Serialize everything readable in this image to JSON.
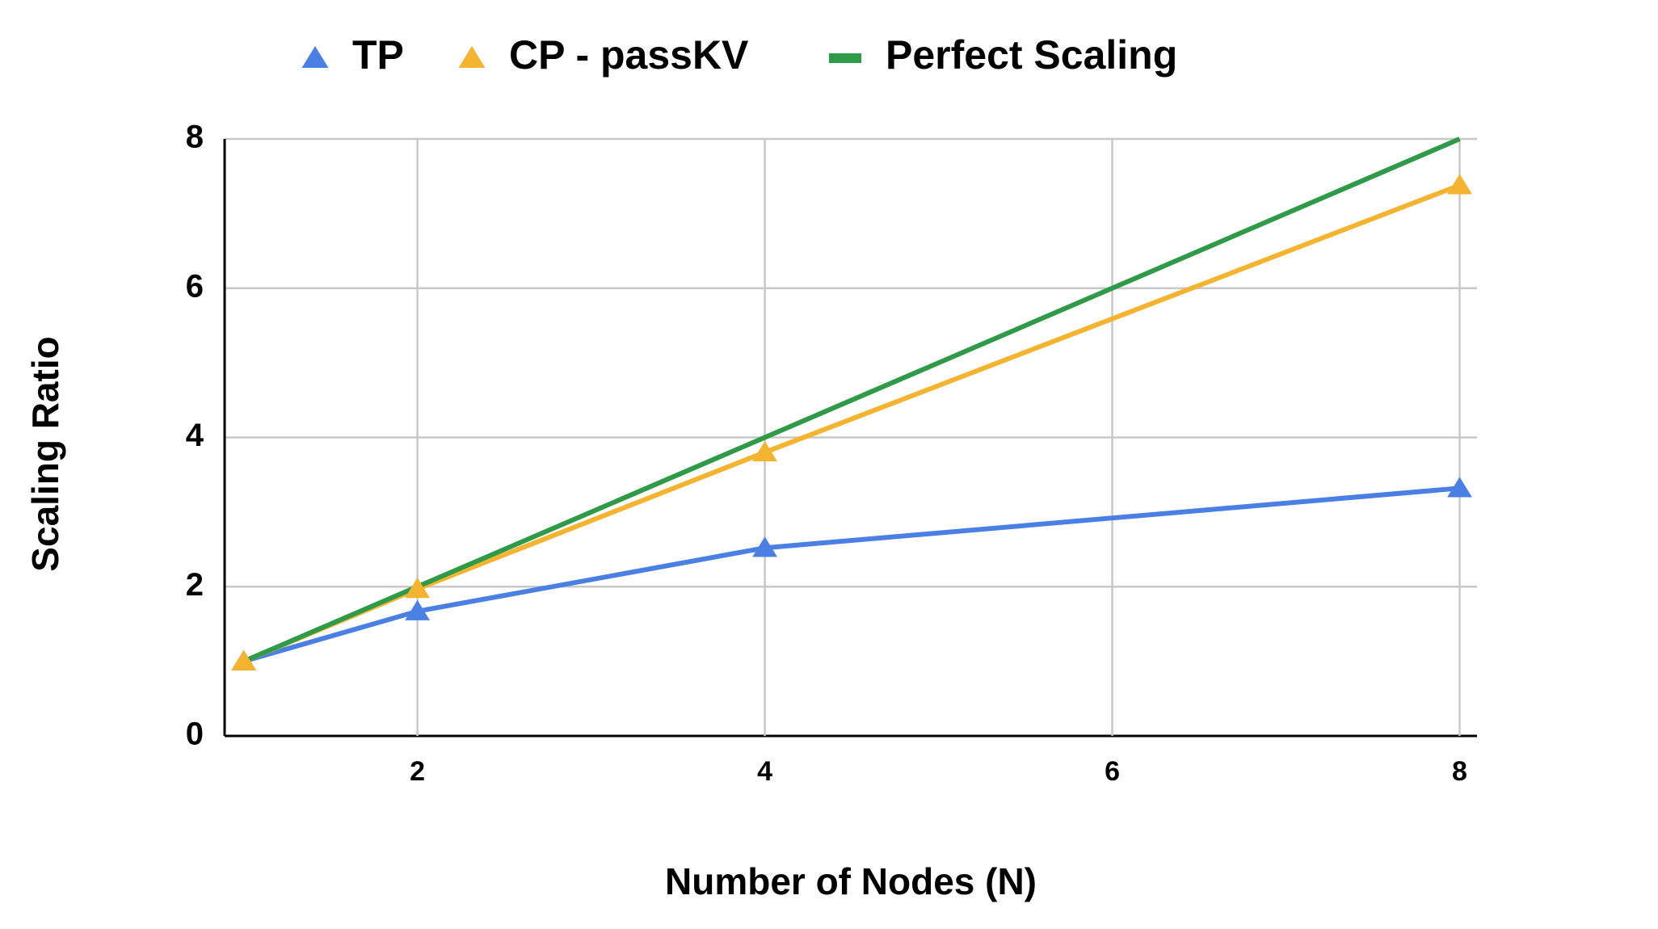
{
  "chart_data": {
    "type": "line",
    "x_label": "Number of Nodes (N)",
    "y_label": "Scaling Ratio",
    "x": [
      1,
      2,
      4,
      8
    ],
    "series": [
      {
        "name": "TP",
        "color": "#4a7fe4",
        "marker": "triangle",
        "values": [
          1,
          1.67,
          2.52,
          3.32
        ]
      },
      {
        "name": "CP - passKV",
        "color": "#f5b42f",
        "marker": "triangle",
        "values": [
          1,
          1.97,
          3.8,
          7.38
        ]
      },
      {
        "name": "Perfect Scaling",
        "color": "#2f9a48",
        "marker": "none",
        "values": [
          1,
          2,
          4,
          8
        ]
      }
    ],
    "xlim": [
      0.89,
      8.1
    ],
    "xticks": [
      2,
      4,
      6,
      8
    ],
    "ylim": [
      0,
      8
    ],
    "yticks": [
      0,
      2,
      4,
      6,
      8
    ],
    "grid": true,
    "legend": "top"
  }
}
